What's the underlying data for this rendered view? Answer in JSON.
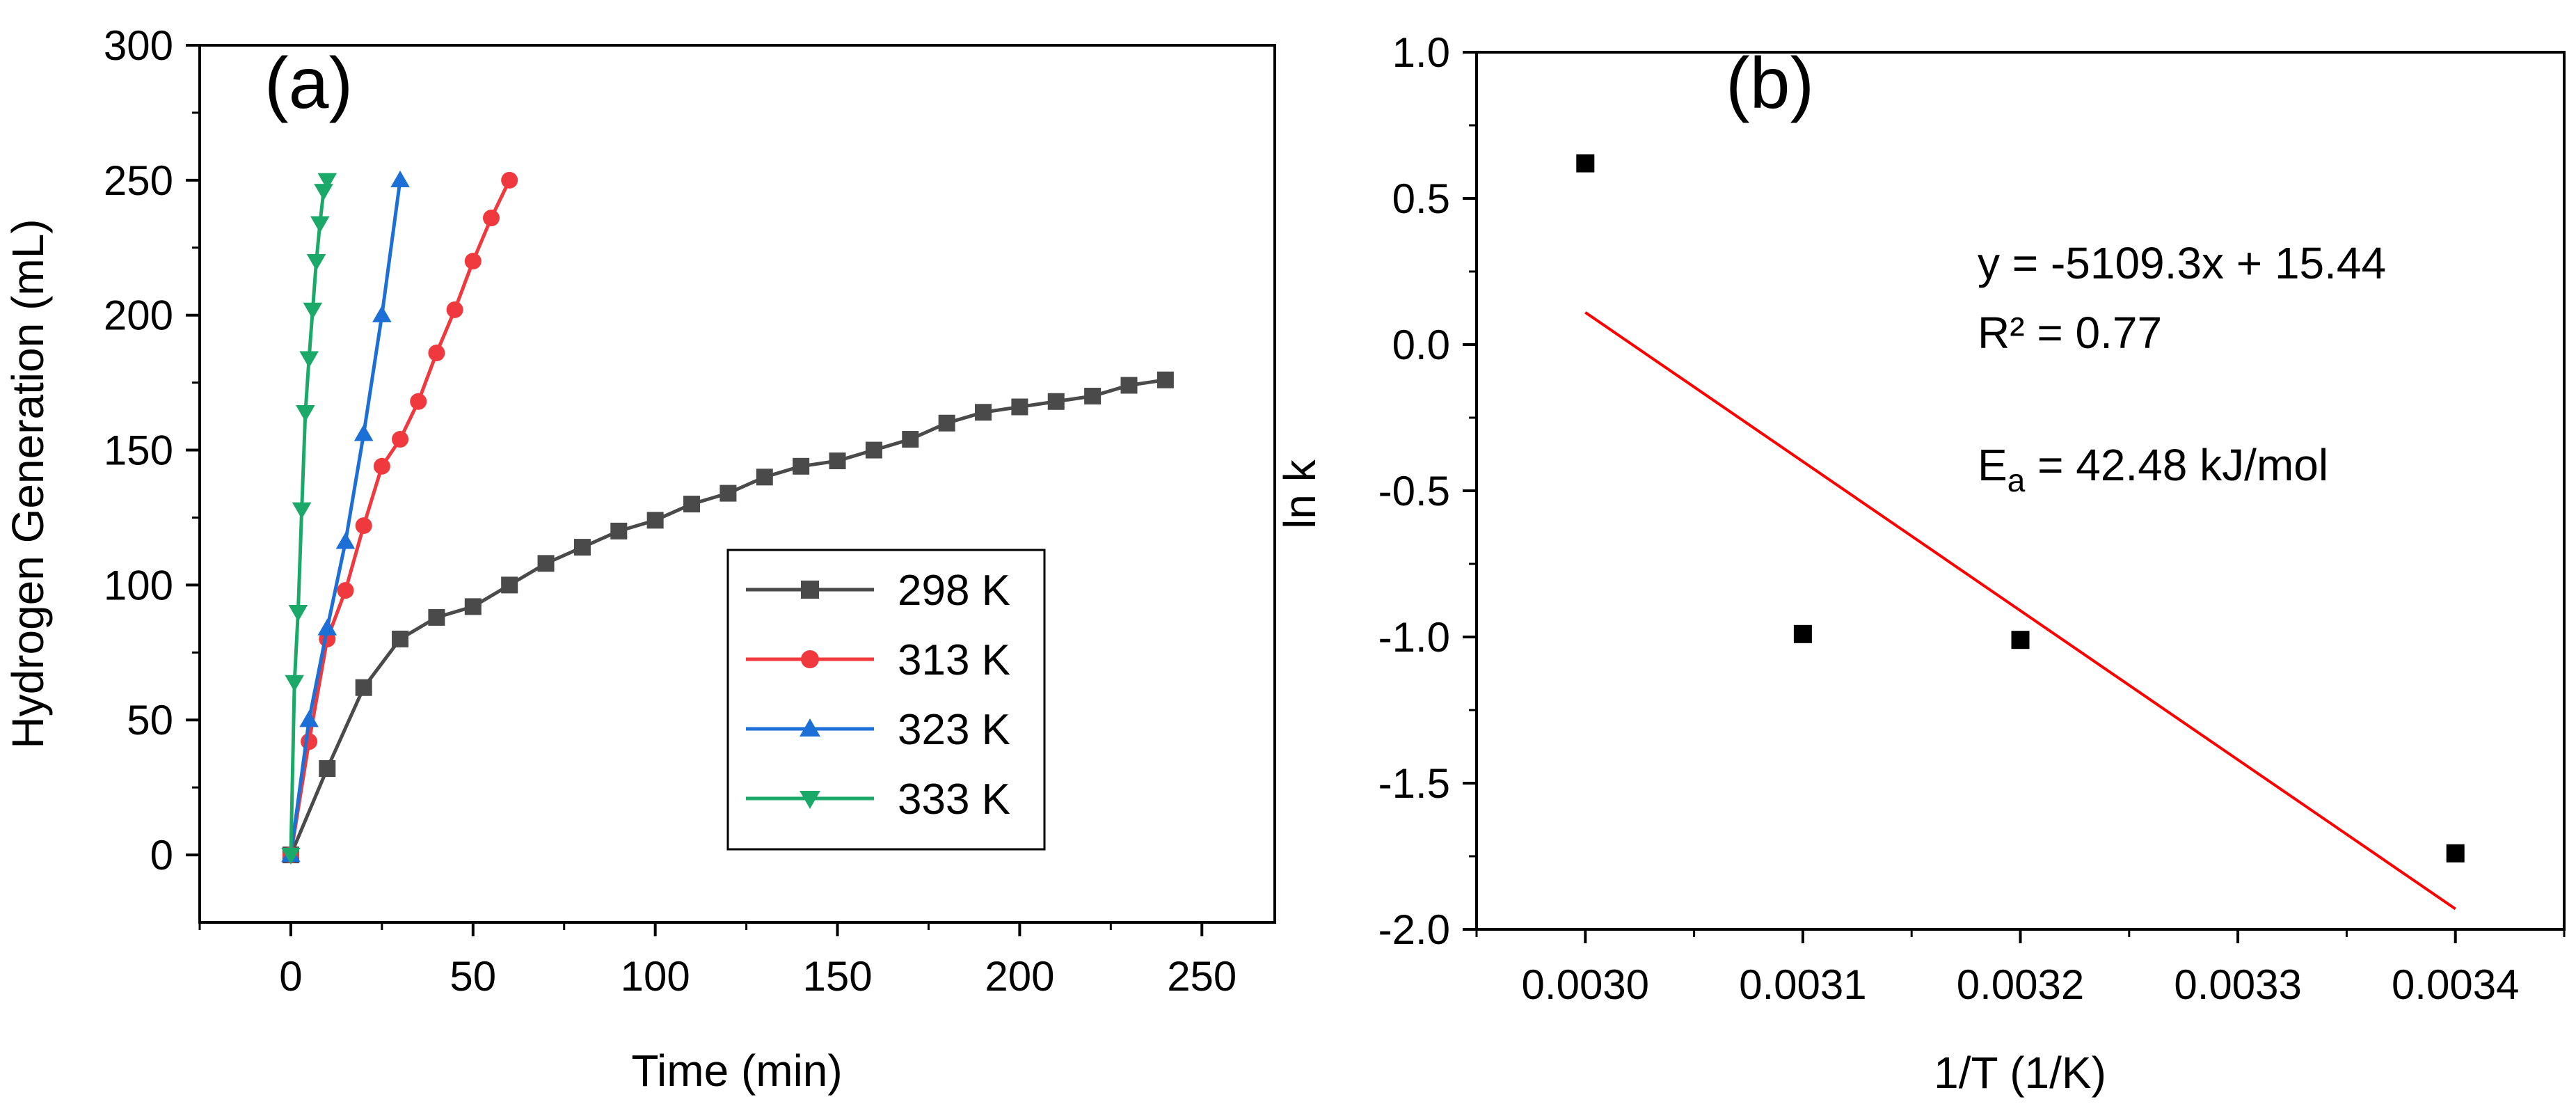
{
  "chart_data": [
    {
      "type": "line",
      "panel_label": "(a)",
      "xlabel": "Time (min)",
      "ylabel": "Hydrogen Generation (mL)",
      "xlim": [
        -25,
        270
      ],
      "ylim": [
        -25,
        300
      ],
      "x_ticks": [
        0,
        50,
        100,
        150,
        200,
        250
      ],
      "y_ticks": [
        0,
        50,
        100,
        150,
        200,
        250,
        300
      ],
      "legend_position": "center-right",
      "series": [
        {
          "name": "298 K",
          "color": "#4a4a4a",
          "marker": "square",
          "x": [
            0,
            10,
            20,
            30,
            40,
            50,
            60,
            70,
            80,
            90,
            100,
            110,
            120,
            130,
            140,
            150,
            160,
            170,
            180,
            190,
            200,
            210,
            220,
            230,
            240
          ],
          "y": [
            0,
            32,
            62,
            80,
            88,
            92,
            100,
            108,
            114,
            120,
            124,
            130,
            134,
            140,
            144,
            146,
            150,
            154,
            160,
            164,
            166,
            168,
            170,
            174,
            176
          ]
        },
        {
          "name": "313 K",
          "color": "#f0393e",
          "marker": "circle",
          "x": [
            0,
            5,
            10,
            15,
            20,
            25,
            30,
            35,
            40,
            45,
            50,
            55,
            60
          ],
          "y": [
            0,
            42,
            80,
            98,
            122,
            144,
            154,
            168,
            186,
            202,
            220,
            236,
            250
          ]
        },
        {
          "name": "323 K",
          "color": "#1b6fd6",
          "marker": "triangle-up",
          "x": [
            0,
            5,
            10,
            15,
            20,
            25,
            30
          ],
          "y": [
            0,
            50,
            84,
            116,
            156,
            200,
            250
          ]
        },
        {
          "name": "333 K",
          "color": "#1ba96a",
          "marker": "triangle-down",
          "x": [
            0,
            1,
            2,
            3,
            4,
            5,
            6,
            7,
            8,
            9,
            10
          ],
          "y": [
            0,
            64,
            90,
            128,
            164,
            184,
            202,
            220,
            234,
            246,
            250
          ]
        }
      ]
    },
    {
      "type": "scatter",
      "panel_label": "(b)",
      "xlabel": "1/T (1/K)",
      "ylabel": "ln k",
      "xlim": [
        0.00295,
        0.00345
      ],
      "ylim": [
        -2.0,
        1.0
      ],
      "x_ticks": [
        0.003,
        0.0031,
        0.0032,
        0.0033,
        0.0034
      ],
      "x_tick_labels": [
        "0.0030",
        "0.0031",
        "0.0032",
        "0.0033",
        "0.0034"
      ],
      "y_ticks": [
        1.0,
        0.5,
        0.0,
        -0.5,
        -1.0,
        -1.5,
        -2.0
      ],
      "y_tick_labels": [
        "1.0",
        "0.5",
        "0.0",
        "-0.5",
        "-1.0",
        "-1.5",
        "-2.0"
      ],
      "points": {
        "x": [
          0.003,
          0.0031,
          0.0032,
          0.0034
        ],
        "y": [
          0.62,
          -0.99,
          -1.01,
          -1.74
        ],
        "color": "#000000",
        "marker": "square"
      },
      "fit_line": {
        "x": [
          0.003,
          0.0034
        ],
        "y": [
          0.11,
          -1.93
        ],
        "color": "#ff0000"
      },
      "annotations": {
        "equation": "y = -5109.3x + 15.44",
        "r_squared": "R² = 0.77",
        "activation_prefix": "E",
        "activation_sub": "a",
        "activation_value": " = 42.48 kJ/mol"
      }
    }
  ]
}
